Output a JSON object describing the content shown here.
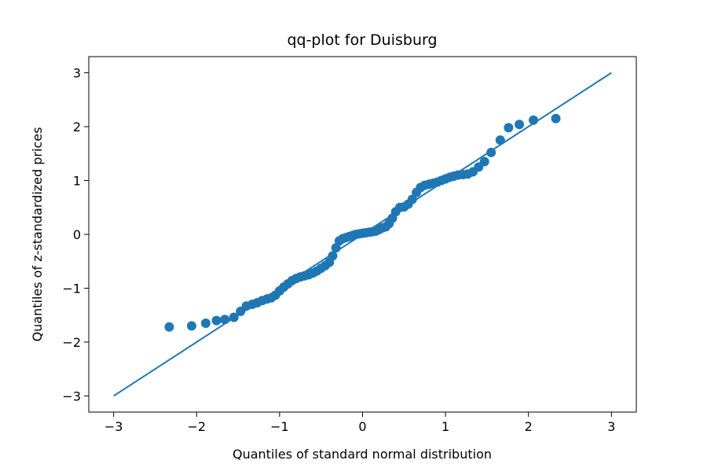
{
  "chart_data": {
    "type": "scatter",
    "title": "qq-plot for Duisburg",
    "x_label": "Quantiles of standard normal distribution",
    "y_label": "Quantiles of z-standardized prices",
    "xlim": [
      -3.3,
      3.3
    ],
    "ylim": [
      -3.3,
      3.3
    ],
    "xticks": [
      {
        "value": -3,
        "label": "−3"
      },
      {
        "value": -2,
        "label": "−2"
      },
      {
        "value": -1,
        "label": "−1"
      },
      0,
      1,
      2,
      3
    ],
    "yticks": [
      {
        "value": -3,
        "label": "−3"
      },
      {
        "value": -2,
        "label": "−2"
      },
      {
        "value": -1,
        "label": "−1"
      },
      0,
      1,
      2,
      3
    ],
    "series": [
      {
        "color": "#1f77b4",
        "x": [
          -2.33,
          -2.06,
          -1.89,
          -1.76,
          -1.66,
          -1.55,
          -1.47,
          -1.4,
          -1.33,
          -1.27,
          -1.21,
          -1.15,
          -1.1,
          -1.05,
          -1.0,
          -0.95,
          -0.9,
          -0.85,
          -0.8,
          -0.75,
          -0.7,
          -0.65,
          -0.6,
          -0.55,
          -0.5,
          -0.45,
          -0.4,
          -0.36,
          -0.32,
          -0.28,
          -0.24,
          -0.2,
          -0.16,
          -0.12,
          -0.08,
          -0.04,
          0.0,
          0.04,
          0.08,
          0.12,
          0.16,
          0.2,
          0.24,
          0.28,
          0.32,
          0.36,
          0.4,
          0.45,
          0.5,
          0.55,
          0.6,
          0.65,
          0.7,
          0.75,
          0.8,
          0.85,
          0.9,
          0.95,
          1.0,
          1.05,
          1.1,
          1.15,
          1.21,
          1.27,
          1.33,
          1.4,
          1.47,
          1.55,
          1.66,
          1.76,
          1.89,
          2.06,
          2.33
        ],
        "values": [
          -1.72,
          -1.7,
          -1.65,
          -1.6,
          -1.58,
          -1.54,
          -1.43,
          -1.33,
          -1.3,
          -1.27,
          -1.23,
          -1.2,
          -1.18,
          -1.13,
          -1.05,
          -0.98,
          -0.92,
          -0.86,
          -0.82,
          -0.79,
          -0.77,
          -0.75,
          -0.72,
          -0.68,
          -0.63,
          -0.58,
          -0.52,
          -0.4,
          -0.25,
          -0.12,
          -0.08,
          -0.06,
          -0.04,
          -0.02,
          0.0,
          0.01,
          0.02,
          0.03,
          0.04,
          0.05,
          0.06,
          0.09,
          0.12,
          0.14,
          0.2,
          0.3,
          0.42,
          0.5,
          0.51,
          0.56,
          0.65,
          0.78,
          0.87,
          0.91,
          0.93,
          0.95,
          0.97,
          1.0,
          1.03,
          1.06,
          1.08,
          1.1,
          1.11,
          1.12,
          1.16,
          1.25,
          1.35,
          1.52,
          1.75,
          1.98,
          2.04,
          2.12,
          2.15
        ]
      }
    ],
    "reference_line": {
      "color": "#1f77b4",
      "x": [
        -3,
        3
      ],
      "values": [
        -3,
        3
      ]
    }
  }
}
